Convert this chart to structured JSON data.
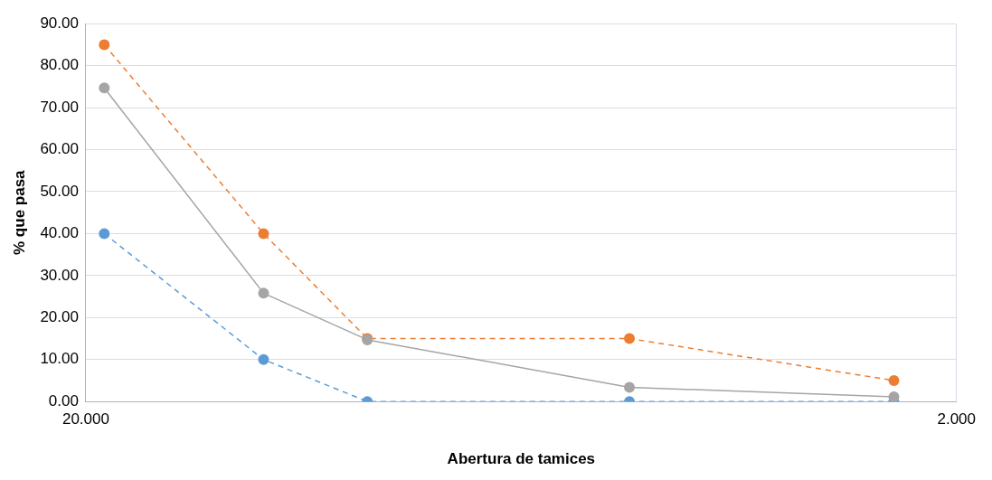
{
  "chart_data": {
    "type": "line",
    "xlabel": "Abertura de tamices",
    "ylabel": "% que pasa",
    "log": "x",
    "grid": true,
    "legend": false,
    "marker": "circle",
    "xlim": [
      20,
      2
    ],
    "xticks": [
      {
        "value": 20,
        "label": "20.000"
      },
      {
        "value": 2,
        "label": "2.000"
      }
    ],
    "ylim": [
      0,
      90
    ],
    "yticks": [
      {
        "value": 0,
        "label": "0.00"
      },
      {
        "value": 10,
        "label": "10.00"
      },
      {
        "value": 20,
        "label": "20.00"
      },
      {
        "value": 30,
        "label": "30.00"
      },
      {
        "value": 40,
        "label": "40.00"
      },
      {
        "value": 50,
        "label": "50.00"
      },
      {
        "value": 60,
        "label": "60.00"
      },
      {
        "value": 70,
        "label": "70.00"
      },
      {
        "value": 80,
        "label": "80.00"
      },
      {
        "value": 90,
        "label": "90.00"
      }
    ],
    "x": [
      19.05,
      12.5,
      9.5,
      4.75,
      2.36
    ],
    "series": [
      {
        "color": "#5b9bd5",
        "line_style": "dashed",
        "values": [
          40,
          10,
          0,
          0,
          0
        ]
      },
      {
        "color": "#ed7d31",
        "line_style": "dashed",
        "values": [
          85,
          40,
          15,
          15,
          5
        ]
      },
      {
        "color": "#a5a5a5",
        "line_style": "solid",
        "values": [
          74.7,
          25.8,
          14.7,
          3.4,
          1.1
        ]
      }
    ]
  }
}
